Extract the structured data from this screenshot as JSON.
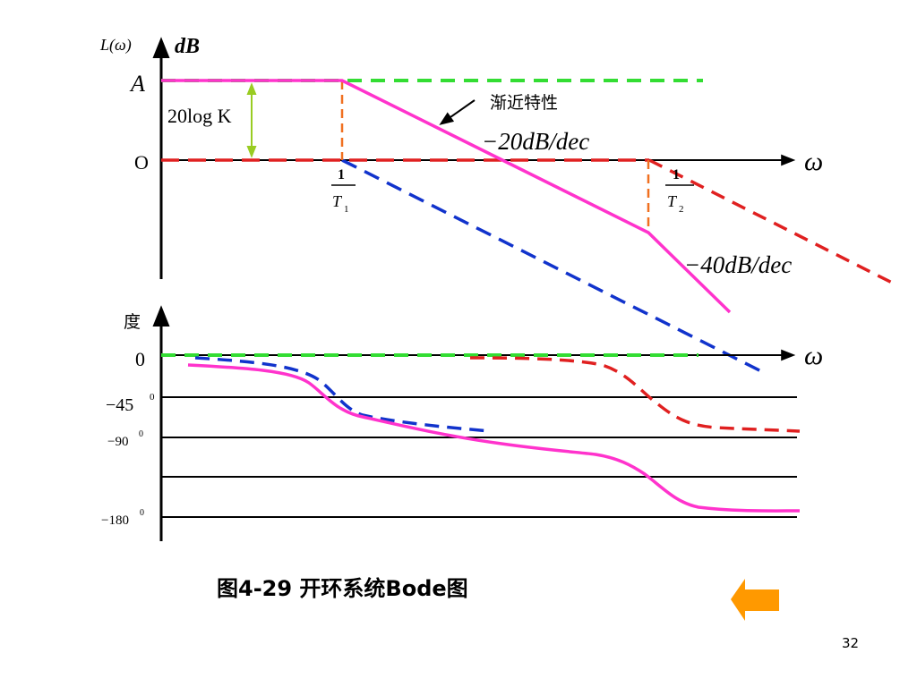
{
  "upper": {
    "y_axis_func_label": "L(ω)",
    "y_axis_unit_label": "dB",
    "level_label": "A",
    "gain_label": "20log K",
    "zero_label": "O",
    "x_axis_label": "ω",
    "annotation": "渐近特性",
    "slope1_label": "−20dB/dec",
    "slope2_label": "−40dB/dec",
    "corner1": {
      "num": "1",
      "den": "T",
      "sub": "1"
    },
    "corner2": {
      "num": "1",
      "den": "T",
      "sub": "2"
    }
  },
  "lower": {
    "y_axis_label": "度",
    "zero_label": "0",
    "x_axis_label": "ω",
    "tick_m45": {
      "base": "−45",
      "sup": "0"
    },
    "tick_m90": {
      "base": "−90",
      "sup": "0"
    },
    "tick_m180": {
      "base": "−180",
      "sup": "0"
    }
  },
  "caption": "图4-29  开环系统Bode图",
  "page_number": "32",
  "colors": {
    "asymptote": "#ff33cc",
    "green": "#33dd33",
    "red": "#e02020",
    "blue": "#1133cc",
    "orange": "#f07020",
    "arrow": "#ff9900",
    "gain_arrow": "#99cc22"
  }
}
